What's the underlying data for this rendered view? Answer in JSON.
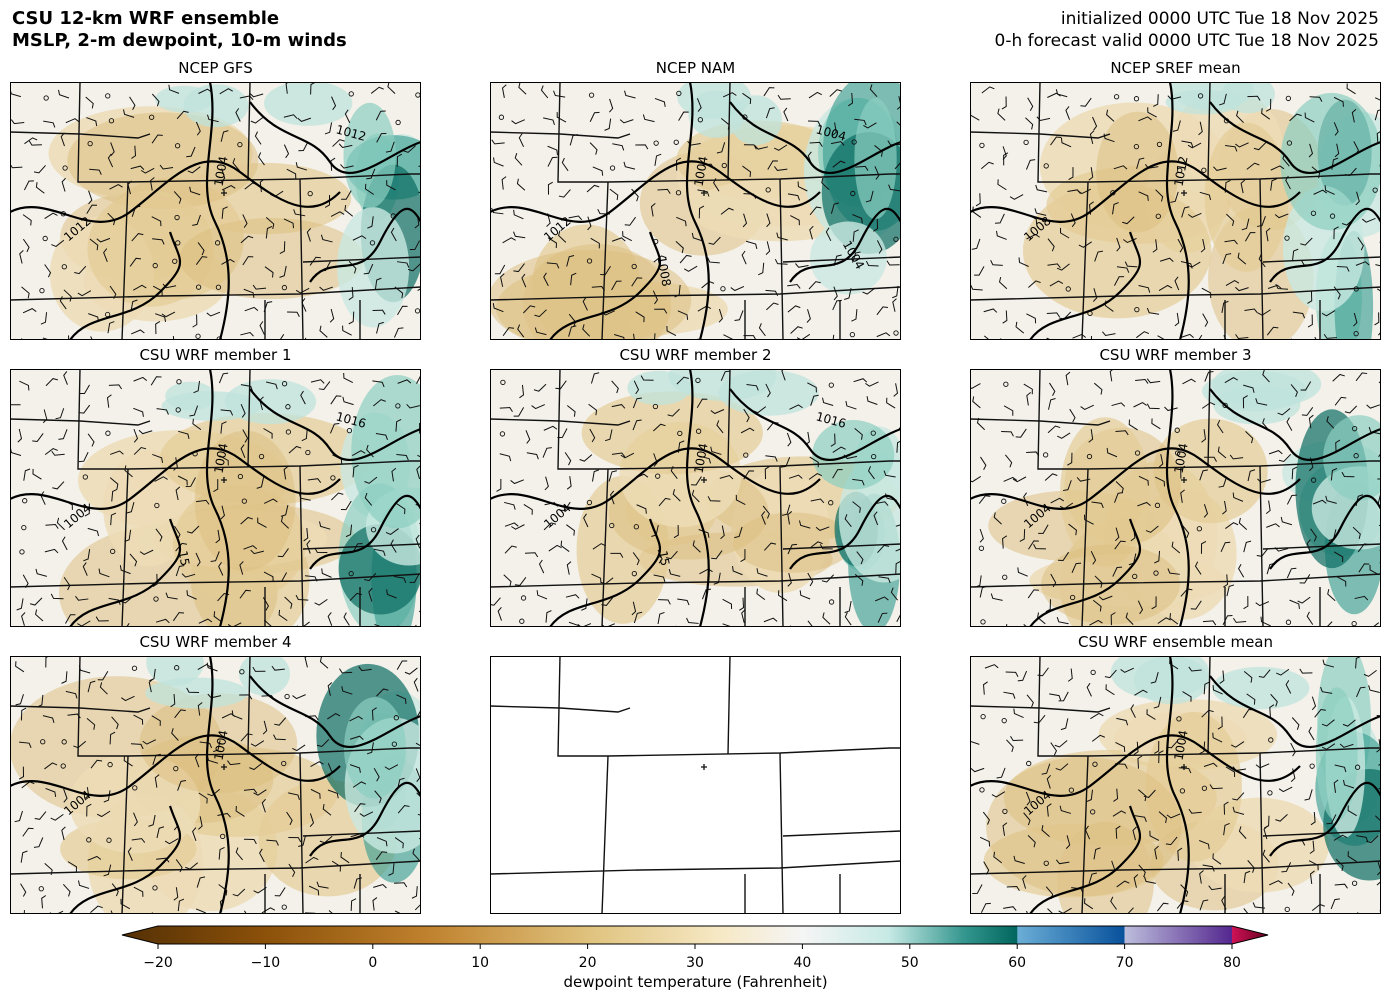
{
  "header": {
    "title_line1": "CSU 12-km WRF ensemble",
    "title_line2": "MSLP, 2-m dewpoint, 10-m winds",
    "init_line": "initialized 0000 UTC Tue 18 Nov 2025",
    "valid_line": "0-h forecast valid 0000 UTC Tue 18 Nov 2025"
  },
  "chart_data": {
    "type": "heatmap",
    "panels": [
      {
        "title": "NCEP GFS",
        "isobar_labels": [
          "1012",
          "1004",
          "1012"
        ],
        "shaded": true
      },
      {
        "title": "NCEP NAM",
        "isobar_labels": [
          "1012",
          "1004",
          "1004",
          "1008",
          "1004"
        ],
        "shaded": true
      },
      {
        "title": "NCEP SREF mean",
        "isobar_labels": [
          "1008",
          "1012"
        ],
        "shaded": true
      },
      {
        "title": "CSU WRF member 1",
        "isobar_labels": [
          "1004",
          "1004",
          "1016",
          "15"
        ],
        "shaded": true
      },
      {
        "title": "CSU WRF member 2",
        "isobar_labels": [
          "1004",
          "1004",
          "1016",
          "15"
        ],
        "shaded": true
      },
      {
        "title": "CSU WRF member 3",
        "isobar_labels": [
          "1004",
          "1004"
        ],
        "shaded": true
      },
      {
        "title": "CSU WRF member 4",
        "isobar_labels": [
          "1004",
          "1004"
        ],
        "shaded": true
      },
      {
        "title": "",
        "isobar_labels": [],
        "shaded": false
      },
      {
        "title": "CSU WRF ensemble mean",
        "isobar_labels": [
          "1004",
          "1004"
        ],
        "shaded": true
      }
    ],
    "colorbar": {
      "label": "dewpoint temperature (Fahrenheit)",
      "range": [
        -30,
        90
      ],
      "ticks": [
        -20,
        -10,
        0,
        10,
        20,
        30,
        40,
        50,
        60,
        70,
        80
      ],
      "tick_labels": [
        "−20",
        "−10",
        "0",
        "10",
        "20",
        "30",
        "40",
        "50",
        "60",
        "70",
        "80"
      ],
      "extend": "both",
      "stops": [
        {
          "v": -30,
          "c": "#543005"
        },
        {
          "v": -10,
          "c": "#8c510a"
        },
        {
          "v": 5,
          "c": "#bf812d"
        },
        {
          "v": 20,
          "c": "#dfc27d"
        },
        {
          "v": 32,
          "c": "#f6e8c3"
        },
        {
          "v": 40,
          "c": "#f5f5f5"
        },
        {
          "v": 48,
          "c": "#c7eae5"
        },
        {
          "v": 55,
          "c": "#35978f"
        },
        {
          "v": 60,
          "c": "#01665e"
        },
        {
          "v": 60.01,
          "c": "#6baed6"
        },
        {
          "v": 70,
          "c": "#08519c"
        },
        {
          "v": 70.01,
          "c": "#bcbddc"
        },
        {
          "v": 80,
          "c": "#54278f"
        },
        {
          "v": 80.01,
          "c": "#ce1256"
        },
        {
          "v": 90,
          "c": "#67001f"
        }
      ]
    }
  }
}
